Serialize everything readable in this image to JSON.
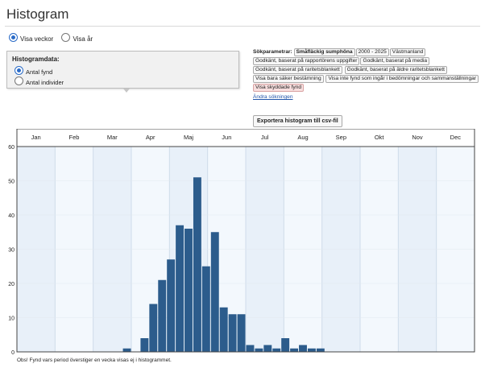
{
  "page": {
    "title": "Histogram",
    "view_options": [
      {
        "label": "Visa veckor",
        "selected": true
      },
      {
        "label": "Visa år",
        "selected": false
      }
    ]
  },
  "histogram_panel": {
    "heading": "Histogramdata:",
    "options": [
      {
        "label": "Antal fynd",
        "selected": true
      },
      {
        "label": "Antal individer",
        "selected": false
      }
    ]
  },
  "search_params": {
    "label": "Sökparametrar:",
    "chips": [
      {
        "text": "Småfläckig sumphöna",
        "style": "bold"
      },
      {
        "text": "2000 - 2025",
        "style": "normal"
      },
      {
        "text": "Västmanland",
        "style": "normal"
      },
      {
        "text": "Godkänt, baserat på rapportörens uppgifter",
        "style": "normal"
      },
      {
        "text": "Godkänt, baserat på media",
        "style": "normal"
      },
      {
        "text": "Godkänt, baserat på raritetsblankett",
        "style": "normal"
      },
      {
        "text": "Godkänt, baserat på äldre raritetsblankett",
        "style": "normal"
      },
      {
        "text": "Visa bara säker bestämning",
        "style": "normal"
      },
      {
        "text": "Visa inte fynd som ingår i bedömningar och sammanställningar",
        "style": "normal"
      },
      {
        "text": "Visa skyddade fynd",
        "style": "red"
      }
    ],
    "change_link": "Ändra sökningen"
  },
  "export_button": "Exportera histogram till csv-fil",
  "footnote": "Obs! Fynd vars period överstiger en vecka visas ej i histogrammet.",
  "colors": {
    "bar": "#2c5c8c",
    "plot_bg": "#f3f8fd",
    "plot_bg_alt": "#e8f0f9",
    "grid": "#cfdcea"
  },
  "chart_data": {
    "type": "bar",
    "title": "",
    "xlabel": "",
    "ylabel": "",
    "months": [
      "Jan",
      "Feb",
      "Mar",
      "Apr",
      "Maj",
      "Jun",
      "Jul",
      "Aug",
      "Sep",
      "Okt",
      "Nov",
      "Dec"
    ],
    "yticks": [
      0,
      10,
      20,
      30,
      40,
      50,
      60
    ],
    "ylim": [
      0,
      60
    ],
    "weeks": 52,
    "grid": true,
    "bars": [
      {
        "week": 13,
        "value": 1
      },
      {
        "week": 15,
        "value": 4
      },
      {
        "week": 16,
        "value": 14
      },
      {
        "week": 17,
        "value": 21
      },
      {
        "week": 18,
        "value": 27
      },
      {
        "week": 19,
        "value": 37
      },
      {
        "week": 20,
        "value": 36
      },
      {
        "week": 21,
        "value": 51
      },
      {
        "week": 22,
        "value": 25
      },
      {
        "week": 23,
        "value": 35
      },
      {
        "week": 24,
        "value": 13
      },
      {
        "week": 25,
        "value": 11
      },
      {
        "week": 26,
        "value": 11
      },
      {
        "week": 27,
        "value": 2
      },
      {
        "week": 28,
        "value": 1
      },
      {
        "week": 29,
        "value": 2
      },
      {
        "week": 30,
        "value": 1
      },
      {
        "week": 31,
        "value": 4
      },
      {
        "week": 32,
        "value": 1
      },
      {
        "week": 33,
        "value": 2
      },
      {
        "week": 34,
        "value": 1
      },
      {
        "week": 35,
        "value": 1
      }
    ]
  }
}
